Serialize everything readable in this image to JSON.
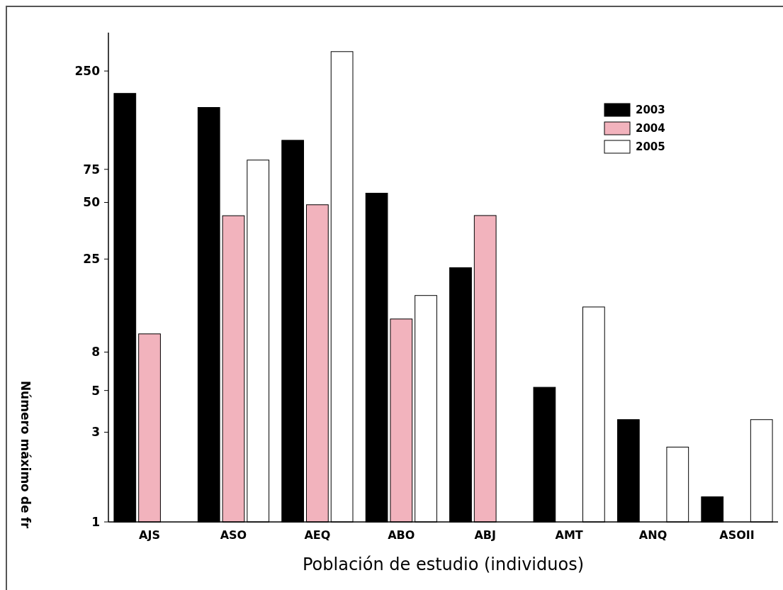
{
  "chart_data": {
    "type": "bar",
    "xlabel": "Población de estudio (individuos)",
    "ylabel": "Número máximo de fr",
    "categories": [
      "AJS",
      "ASO",
      "AEQ",
      "ABO",
      "ABJ",
      "AMT",
      "ANQ",
      "ASOII"
    ],
    "series": [
      {
        "name": "2003",
        "color": "#000000",
        "values": [
          190,
          160,
          107,
          56,
          22.5,
          5.2,
          3.5,
          1.36
        ]
      },
      {
        "name": "2004",
        "color": "#f2b3bd",
        "values": [
          10,
          42.5,
          48.6,
          12,
          42.6,
          null,
          null,
          null
        ]
      },
      {
        "name": "2005",
        "color": "#ffffff",
        "values": [
          null,
          84,
          317,
          16,
          null,
          13.9,
          2.5,
          3.5
        ]
      }
    ],
    "log": true,
    "ylim": [
      1,
      400
    ],
    "yticks": [
      1,
      3,
      5,
      8,
      25,
      50,
      75,
      250
    ],
    "legend": "top right"
  }
}
